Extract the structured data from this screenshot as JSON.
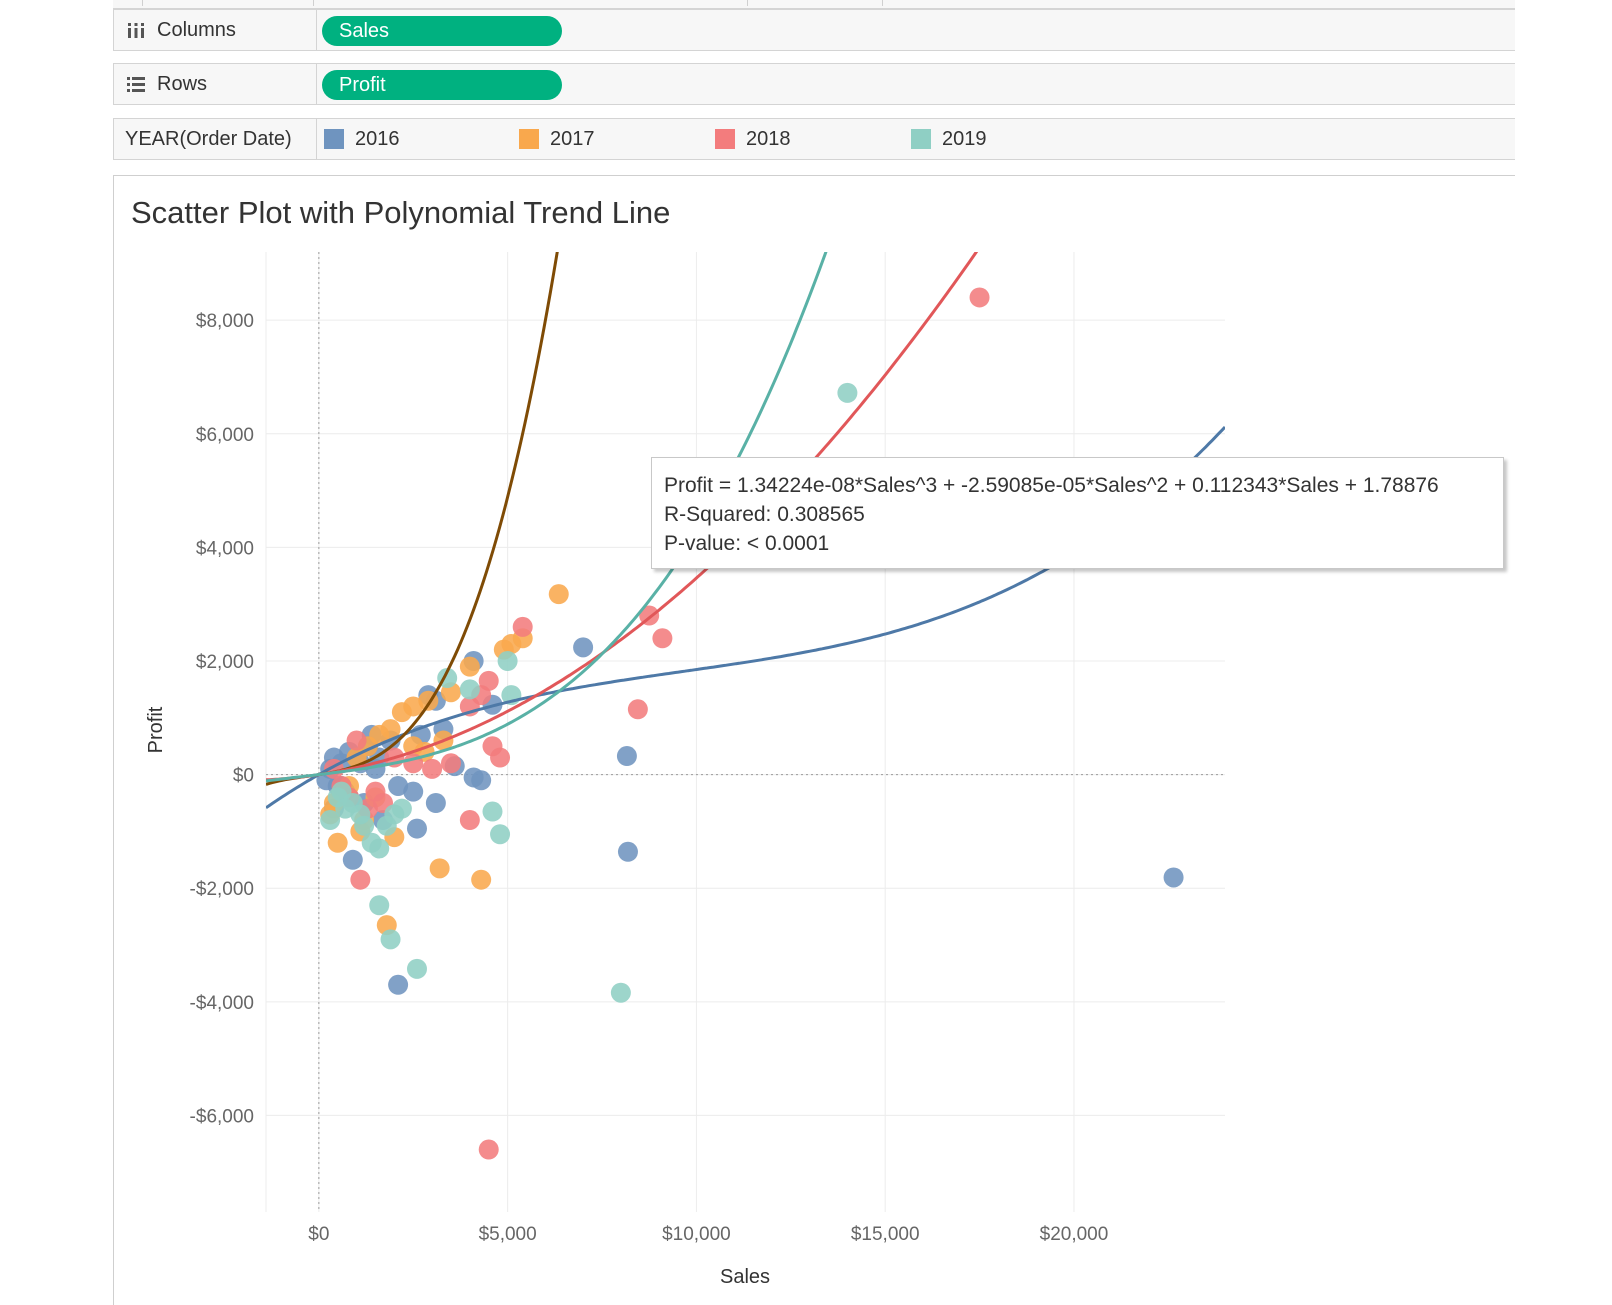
{
  "shelves": {
    "columns": {
      "label": "Columns",
      "pill": "Sales",
      "icon": "columns-icon"
    },
    "rows": {
      "label": "Rows",
      "pill": "Profit",
      "icon": "rows-icon"
    },
    "color": {
      "label": "YEAR(Order Date)"
    }
  },
  "legend": [
    {
      "label": "2016",
      "color": "#6f94bf"
    },
    {
      "label": "2017",
      "color": "#f9a84d"
    },
    {
      "label": "2018",
      "color": "#f37c7d"
    },
    {
      "label": "2019",
      "color": "#8fcfc4"
    }
  ],
  "view": {
    "title": "Scatter Plot with Polynomial Trend Line"
  },
  "tooltip": {
    "equation": "Profit = 1.34224e-08*Sales^3 + -2.59085e-05*Sales^2 + 0.112343*Sales + 1.78876",
    "r_squared": "R-Squared: 0.308565",
    "p_value": "P-value: < 0.0001"
  },
  "chart_data": {
    "type": "scatter",
    "title": "Scatter Plot with Polynomial Trend Line",
    "xlabel": "Sales",
    "ylabel": "Profit",
    "xlim": [
      -1400,
      24000
    ],
    "ylim": [
      -7700,
      9200
    ],
    "x_ticks": [
      0,
      5000,
      10000,
      15000,
      20000
    ],
    "x_tick_labels": [
      "$0",
      "$5,000",
      "$10,000",
      "$15,000",
      "$20,000"
    ],
    "y_ticks": [
      8000,
      6000,
      4000,
      2000,
      0,
      -2000,
      -4000,
      -6000
    ],
    "y_tick_labels": [
      "$8,000",
      "$6,000",
      "$4,000",
      "$2,000",
      "$0",
      "-$2,000",
      "-$4,000",
      "-$6,000"
    ],
    "grid": true,
    "series": [
      {
        "name": "2016",
        "color": "#4e79a7",
        "point_color": "#6f94bf",
        "trend": {
          "type": "polynomial",
          "degree": 3,
          "coef": [
            1e-09,
            -2.9e-05,
            0.375,
            0
          ]
        },
        "points": [
          [
            22638,
            -1811
          ],
          [
            8187,
            -1359
          ],
          [
            8159,
            327
          ],
          [
            6999,
            2240
          ],
          [
            4099,
            2000
          ],
          [
            4599,
            1230
          ],
          [
            4299,
            -100
          ],
          [
            4099,
            -50
          ],
          [
            3599,
            150
          ],
          [
            3299,
            800
          ],
          [
            3099,
            1300
          ],
          [
            2899,
            1400
          ],
          [
            2699,
            700
          ],
          [
            2599,
            -950
          ],
          [
            2499,
            -300
          ],
          [
            3099,
            -500
          ],
          [
            2099,
            -3700
          ],
          [
            899,
            -1500
          ],
          [
            399,
            -600
          ],
          [
            499,
            -200
          ],
          [
            599,
            200
          ],
          [
            699,
            -300
          ],
          [
            799,
            400
          ],
          [
            999,
            300
          ],
          [
            1199,
            -500
          ],
          [
            1399,
            700
          ],
          [
            1499,
            100
          ],
          [
            1699,
            -800
          ],
          [
            1899,
            600
          ],
          [
            2099,
            -200
          ],
          [
            199,
            -100
          ],
          [
            299,
            100
          ],
          [
            399,
            300
          ],
          [
            599,
            -200
          ],
          [
            799,
            -400
          ],
          [
            1099,
            200
          ],
          [
            1299,
            500
          ],
          [
            1599,
            300
          ]
        ]
      },
      {
        "name": "2017",
        "color": "#7f4b05",
        "point_color": "#f9a84d",
        "trend": {
          "type": "polynomial",
          "degree": 3,
          "coef": [
            3e-08,
            2.55e-05,
            0.1,
            0
          ]
        },
        "points": [
          [
            6354,
            3177
          ],
          [
            5399,
            2400
          ],
          [
            5099,
            2300
          ],
          [
            4899,
            2200
          ],
          [
            4299,
            -1850
          ],
          [
            3199,
            -1650
          ],
          [
            1799,
            -2650
          ],
          [
            1999,
            -1100
          ],
          [
            1099,
            -1000
          ],
          [
            499,
            -1200
          ],
          [
            3999,
            1900
          ],
          [
            3499,
            1450
          ],
          [
            2899,
            1300
          ],
          [
            2499,
            1200
          ],
          [
            2199,
            1100
          ],
          [
            1899,
            800
          ],
          [
            1599,
            700
          ],
          [
            1299,
            500
          ],
          [
            999,
            300
          ],
          [
            799,
            -200
          ],
          [
            599,
            -300
          ],
          [
            399,
            -500
          ],
          [
            299,
            -700
          ],
          [
            2499,
            500
          ],
          [
            2799,
            400
          ],
          [
            3299,
            600
          ],
          [
            1499,
            -400
          ],
          [
            1199,
            -800
          ]
        ]
      },
      {
        "name": "2018",
        "color": "#e15759",
        "point_color": "#f37c7d",
        "trend": {
          "type": "polynomial",
          "degree": 3,
          "coef": [
            0.0,
            2.46e-05,
            0.1,
            0
          ]
        },
        "points": [
          [
            17499,
            8400
          ],
          [
            8749,
            2800
          ],
          [
            9099,
            2400
          ],
          [
            8449,
            1150
          ],
          [
            5399,
            2600
          ],
          [
            4499,
            -6600
          ],
          [
            4799,
            300
          ],
          [
            4599,
            500
          ],
          [
            4499,
            1650
          ],
          [
            4299,
            1400
          ],
          [
            3999,
            1200
          ],
          [
            3999,
            -800
          ],
          [
            1099,
            -1850
          ],
          [
            1499,
            -300
          ],
          [
            1999,
            300
          ],
          [
            2499,
            200
          ],
          [
            2999,
            100
          ],
          [
            3499,
            200
          ],
          [
            999,
            600
          ],
          [
            799,
            -400
          ],
          [
            599,
            -200
          ],
          [
            399,
            100
          ],
          [
            1299,
            -600
          ],
          [
            1699,
            -500
          ]
        ]
      },
      {
        "name": "2019",
        "color": "#59b1a6",
        "point_color": "#8fcfc4",
        "trend": {
          "type": "polynomial",
          "degree": 3,
          "coef": [
            3.03e-09,
            4.36e-06,
            0.08,
            0
          ]
        },
        "points": [
          [
            13999,
            6720
          ],
          [
            7999,
            -3840
          ],
          [
            2599,
            -3420
          ],
          [
            1899,
            -2900
          ],
          [
            1599,
            -2300
          ],
          [
            4599,
            -650
          ],
          [
            4799,
            -1050
          ],
          [
            1599,
            -1300
          ],
          [
            1399,
            -1200
          ],
          [
            1199,
            -900
          ],
          [
            4999,
            2000
          ],
          [
            5099,
            1400
          ],
          [
            3399,
            1700
          ],
          [
            3999,
            1500
          ],
          [
            1999,
            -700
          ],
          [
            2199,
            -600
          ],
          [
            899,
            -500
          ],
          [
            599,
            -300
          ],
          [
            299,
            -800
          ],
          [
            499,
            -400
          ],
          [
            699,
            -600
          ],
          [
            1099,
            -700
          ],
          [
            1799,
            -900
          ]
        ]
      }
    ]
  }
}
